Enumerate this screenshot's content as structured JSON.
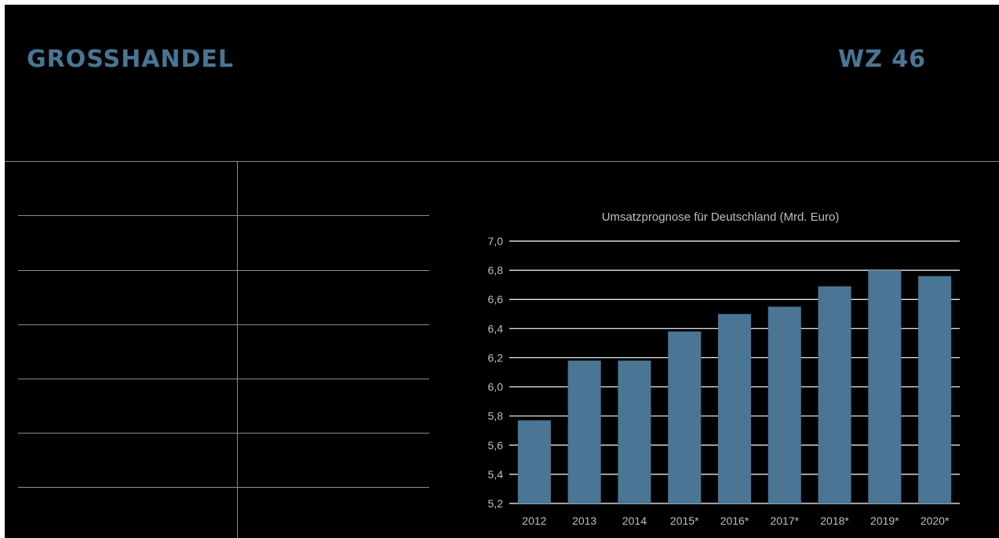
{
  "header": {
    "title_left": "GROSSHANDEL",
    "title_right": "WZ 46"
  },
  "colors": {
    "accent": "#4a7594",
    "bar": "#4a7594",
    "grid": "#ffffff",
    "text": "#bfbfbf"
  },
  "chart_data": {
    "type": "bar",
    "title": "Umsatzprognose für Deutschland (Mrd. Euro)",
    "categories": [
      "2012",
      "2013",
      "2014",
      "2015*",
      "2016*",
      "2017*",
      "2018*",
      "2019*",
      "2020*"
    ],
    "values": [
      5.77,
      6.18,
      6.18,
      6.38,
      6.5,
      6.55,
      6.69,
      6.8,
      6.76
    ],
    "ylim": [
      5.2,
      7.0
    ],
    "yticks": [
      "5,2",
      "5,4",
      "5,6",
      "5,8",
      "6,0",
      "6,2",
      "6,4",
      "6,6",
      "6,8",
      "7,0"
    ],
    "grid": true,
    "legend": "none"
  }
}
